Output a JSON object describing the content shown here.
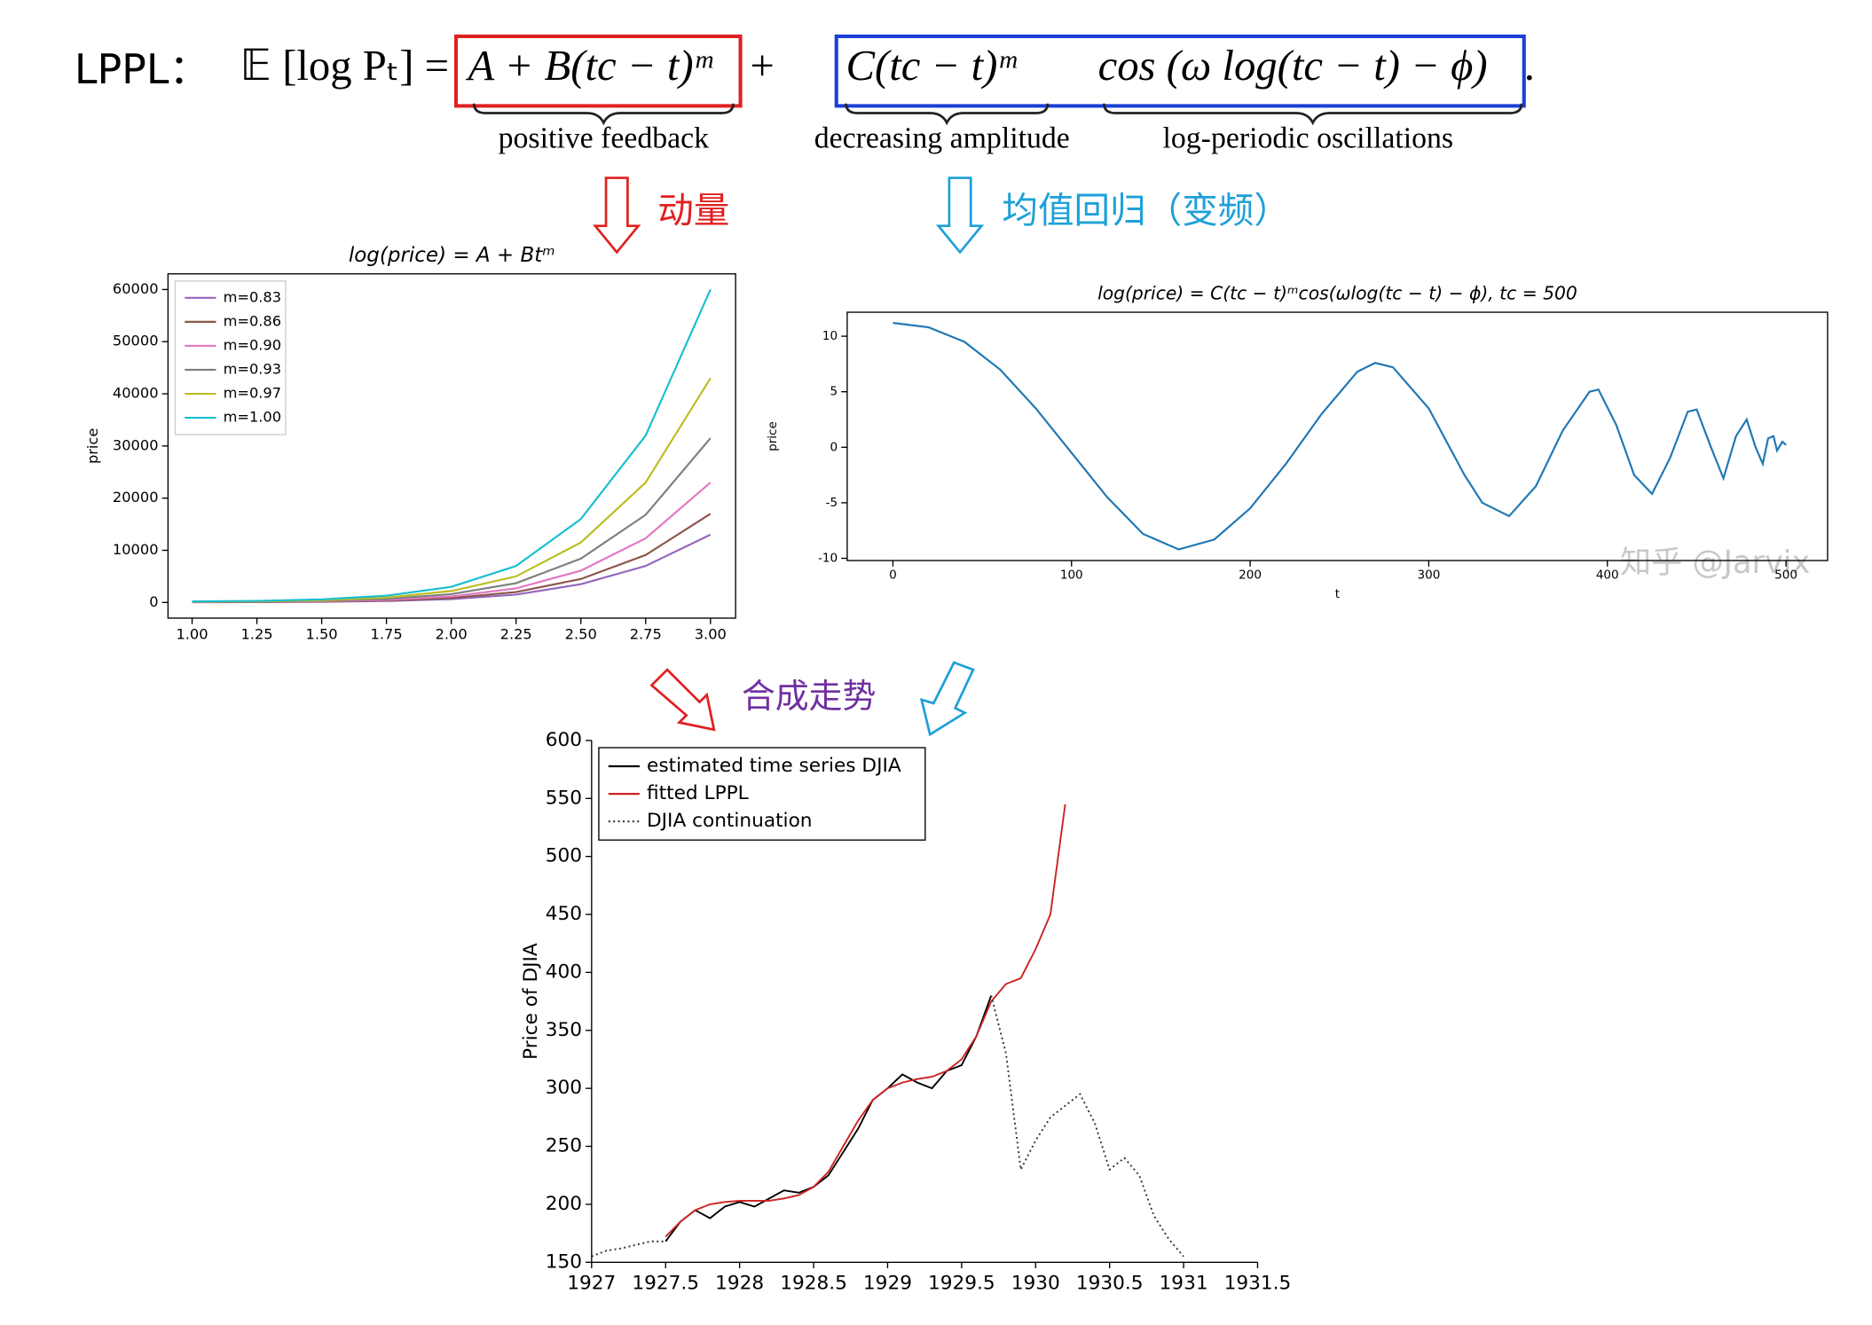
{
  "header": {
    "label": "LPPL：",
    "formula_lhs": "𝔼 [log Pₜ] =",
    "formula_feedback": "A + B(tc − t)ᵐ",
    "formula_plus": "+",
    "formula_amplitude": "C(tc − t)ᵐ",
    "formula_oscillation": "cos (ω log(tc − t) − ϕ)",
    "formula_end": ".",
    "brace_labels": [
      "positive feedback",
      "decreasing amplitude",
      "log-periodic oscillations"
    ],
    "arrow_labels": [
      "动量",
      "均值回归（变频）",
      "合成走势"
    ],
    "watermark": "知乎 @Jarvix"
  },
  "chart_data": [
    {
      "type": "line",
      "title": "log(price) = A + Btᵐ",
      "y_label": "price",
      "legend": "upper left",
      "x": [
        1.0,
        1.25,
        1.5,
        1.75,
        2.0,
        2.25,
        2.5,
        2.75,
        3.0
      ],
      "series": [
        {
          "name": "m=0.83",
          "color": "#9467bd",
          "values": [
            45,
            65,
            130,
            280,
            650,
            1500,
            3500,
            7000,
            13000
          ]
        },
        {
          "name": "m=0.86",
          "color": "#8c564b",
          "values": [
            60,
            90,
            170,
            370,
            850,
            2000,
            4500,
            9100,
            17000
          ]
        },
        {
          "name": "m=0.90",
          "color": "#e377c2",
          "values": [
            80,
            120,
            230,
            500,
            1150,
            2700,
            6100,
            12300,
            23000
          ]
        },
        {
          "name": "m=0.93",
          "color": "#7f7f7f",
          "values": [
            100,
            160,
            320,
            680,
            1600,
            3700,
            8400,
            16800,
            31500
          ]
        },
        {
          "name": "m=0.97",
          "color": "#bcbd22",
          "values": [
            150,
            220,
            430,
            940,
            2200,
            5000,
            11500,
            23000,
            43000
          ]
        },
        {
          "name": "m=1.00",
          "color": "#17becf",
          "values": [
            200,
            300,
            600,
            1300,
            3000,
            7000,
            16000,
            32000,
            60000
          ]
        }
      ],
      "xlim": [
        0.907,
        3.097
      ],
      "ylim": [
        -3000,
        63000
      ],
      "xticks": [
        {
          "value": 1.0,
          "label": "1.00"
        },
        {
          "value": 1.25,
          "label": "1.25"
        },
        {
          "value": 1.5,
          "label": "1.50"
        },
        {
          "value": 1.75,
          "label": "1.75"
        },
        {
          "value": 2.0,
          "label": "2.00"
        },
        {
          "value": 2.25,
          "label": "2.25"
        },
        {
          "value": 2.5,
          "label": "2.50"
        },
        {
          "value": 2.75,
          "label": "2.75"
        },
        {
          "value": 3.0,
          "label": "3.00"
        }
      ],
      "yticks": [
        0,
        10000,
        20000,
        30000,
        40000,
        50000,
        60000
      ]
    },
    {
      "type": "line",
      "title": "log(price) = C(tc − t)ᵐcos(ωlog(tc − t) − ϕ), tc = 500",
      "x_label": "t",
      "y_label": "price",
      "x": [
        0,
        20,
        40,
        60,
        80,
        100,
        120,
        140,
        160,
        180,
        200,
        220,
        240,
        260,
        270,
        280,
        300,
        320,
        330,
        345,
        360,
        375,
        390,
        395,
        405,
        415,
        425,
        435,
        445,
        450,
        458,
        465,
        472,
        478,
        483,
        487,
        490,
        493,
        495,
        498,
        500
      ],
      "series": [
        {
          "color": "#1f77b4",
          "values": [
            11.2,
            10.8,
            9.5,
            7,
            3.5,
            -0.5,
            -4.5,
            -7.8,
            -9.2,
            -8.3,
            -5.5,
            -1.5,
            3,
            6.8,
            7.6,
            7.2,
            3.5,
            -2.5,
            -5,
            -6.2,
            -3.5,
            1.5,
            5,
            5.2,
            2,
            -2.5,
            -4.2,
            -1,
            3.2,
            3.4,
            0,
            -2.8,
            1,
            2.5,
            0,
            -1.5,
            0.8,
            1,
            -0.3,
            0.5,
            0.2
          ]
        }
      ],
      "xlim": [
        -25.6,
        523.3
      ],
      "ylim": [
        -10.2,
        12.16
      ],
      "xticks": [
        0,
        100,
        200,
        300,
        400,
        500
      ],
      "yticks": [
        -10,
        -5,
        0,
        5,
        10
      ]
    },
    {
      "type": "line",
      "y_label": "Price of DJIA",
      "legend": "upper left",
      "x": [
        1927.0,
        1927.1,
        1927.2,
        1927.3,
        1927.4,
        1927.5,
        1927.6,
        1927.7,
        1927.8,
        1927.9,
        1928.0,
        1928.1,
        1928.2,
        1928.3,
        1928.4,
        1928.5,
        1928.6,
        1928.7,
        1928.8,
        1928.9,
        1929.0,
        1929.1,
        1929.2,
        1929.3,
        1929.4,
        1929.5,
        1929.6,
        1929.7,
        1929.8,
        1929.9,
        1930.0,
        1930.1,
        1930.2,
        1930.3,
        1930.4,
        1930.5,
        1930.6,
        1930.7,
        1930.8,
        1930.9,
        1931.0
      ],
      "series": [
        {
          "name": "estimated time series DJIA",
          "color": "#000000",
          "values": [
            null,
            null,
            null,
            null,
            null,
            168,
            185,
            195,
            188,
            198,
            202,
            198,
            205,
            212,
            210,
            215,
            225,
            245,
            265,
            290,
            300,
            312,
            305,
            300,
            315,
            320,
            345,
            380,
            null,
            null,
            null,
            null,
            null,
            null,
            null,
            null,
            null,
            null,
            null,
            null,
            null
          ]
        },
        {
          "name": "fitted LPPL",
          "color": "#cc2222",
          "values": [
            null,
            null,
            null,
            null,
            null,
            172,
            185,
            195,
            200,
            202,
            203,
            203,
            203,
            205,
            208,
            215,
            228,
            250,
            272,
            290,
            300,
            305,
            308,
            310,
            315,
            325,
            345,
            375,
            390,
            395,
            420,
            450,
            545,
            null,
            null,
            null,
            null,
            null,
            null,
            null,
            null
          ]
        },
        {
          "name": "DJIA continuation",
          "color": "#333333",
          "linestyle": "dotted",
          "values": [
            155,
            160,
            162,
            165,
            168,
            168,
            null,
            null,
            null,
            null,
            null,
            null,
            null,
            null,
            null,
            null,
            null,
            null,
            null,
            null,
            null,
            null,
            null,
            null,
            null,
            null,
            null,
            380,
            330,
            230,
            255,
            275,
            285,
            295,
            270,
            230,
            240,
            225,
            190,
            170,
            155
          ]
        }
      ],
      "xlim": [
        1927,
        1931.5
      ],
      "ylim": [
        150,
        600
      ],
      "xticks": [
        1927,
        1927.5,
        1928,
        1928.5,
        1929,
        1929.5,
        1930,
        1930.5,
        1931,
        1931.5
      ],
      "yticks": [
        150,
        200,
        250,
        300,
        350,
        400,
        450,
        500,
        550,
        600
      ]
    }
  ]
}
